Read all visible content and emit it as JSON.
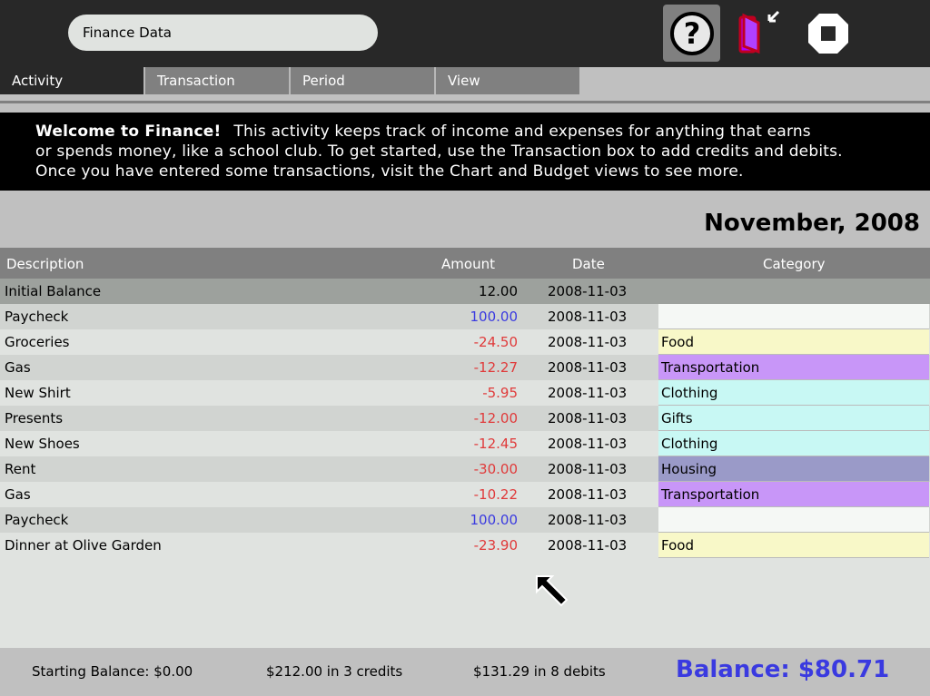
{
  "toolbar": {
    "title": "Finance Data",
    "icons": [
      "help-icon",
      "journal-keep-icon",
      "stop-icon"
    ]
  },
  "tabs": [
    {
      "label": "Activity",
      "active": true
    },
    {
      "label": "Transaction"
    },
    {
      "label": "Period"
    },
    {
      "label": "View"
    }
  ],
  "banner": {
    "heading": "Welcome to Finance!",
    "line1": "This activity keeps track of income and expenses for anything that earns",
    "line2": "or spends money, like a school club.  To get started, use the Transaction box to add credits and debits.",
    "line3": "Once you have entered some transactions, visit the Chart and Budget views to see more."
  },
  "period": "November, 2008",
  "table": {
    "headers": {
      "description": "Description",
      "amount": "Amount",
      "date": "Date",
      "category": "Category"
    },
    "rows": [
      {
        "description": "Initial Balance",
        "amount": "12.00",
        "date": "2008-11-03",
        "category": "",
        "type": "balance"
      },
      {
        "description": "Paycheck",
        "amount": "100.00",
        "date": "2008-11-03",
        "category": "",
        "type": "credit",
        "color": "#f5f8f5"
      },
      {
        "description": "Groceries",
        "amount": "-24.50",
        "date": "2008-11-03",
        "category": "Food",
        "type": "debit",
        "color": "#f8f8c8"
      },
      {
        "description": "Gas",
        "amount": "-12.27",
        "date": "2008-11-03",
        "category": "Transportation",
        "type": "debit",
        "color": "#c896f8"
      },
      {
        "description": "New Shirt",
        "amount": "-5.95",
        "date": "2008-11-03",
        "category": "Clothing",
        "type": "debit",
        "color": "#c8f8f4"
      },
      {
        "description": "Presents",
        "amount": "-12.00",
        "date": "2008-11-03",
        "category": "Gifts",
        "type": "debit",
        "color": "#c8f8f4"
      },
      {
        "description": "New Shoes",
        "amount": "-12.45",
        "date": "2008-11-03",
        "category": "Clothing",
        "type": "debit",
        "color": "#c8f8f4"
      },
      {
        "description": "Rent",
        "amount": "-30.00",
        "date": "2008-11-03",
        "category": "Housing",
        "type": "debit",
        "color": "#9a9ac8"
      },
      {
        "description": "Gas",
        "amount": "-10.22",
        "date": "2008-11-03",
        "category": "Transportation",
        "type": "debit",
        "color": "#c896f8"
      },
      {
        "description": "Paycheck",
        "amount": "100.00",
        "date": "2008-11-03",
        "category": "",
        "type": "credit",
        "color": "#f5f8f5"
      },
      {
        "description": "Dinner at Olive Garden",
        "amount": "-23.90",
        "date": "2008-11-03",
        "category": "Food",
        "type": "debit",
        "color": "#f8f8c8"
      }
    ]
  },
  "footer": {
    "starting": "Starting Balance: $0.00",
    "credits": "$212.00 in 3 credits",
    "debits": "$131.29 in 8 debits",
    "balance": "Balance: $80.71"
  },
  "colors": {
    "credit": "#3a3ae0",
    "debit": "#e03a3a",
    "balance": "#3a3ae0"
  }
}
